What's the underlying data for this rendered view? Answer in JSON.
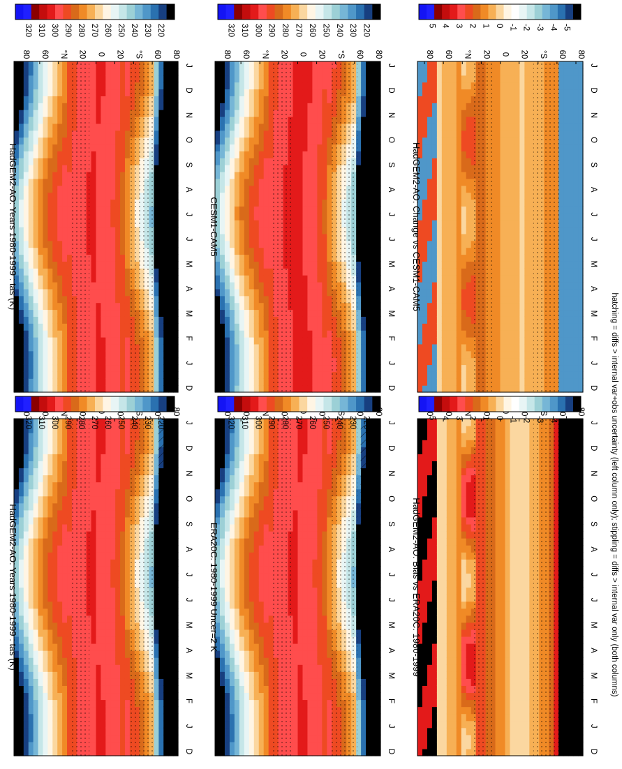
{
  "figure": {
    "footnote": "hatching = diffs > internal var+obs uncertainty (left column only); stippling = diffs > internal var only (both columns)"
  },
  "colors": {
    "abs_scale": [
      "#1414f5",
      "#2020ff",
      "#8b0000",
      "#c40d0d",
      "#e31a1a",
      "#ff4d4d",
      "#ee4a22",
      "#d96a1a",
      "#f08a26",
      "#f7b055",
      "#fbd7a0",
      "#fff5e4",
      "#e8f5f5",
      "#c5e6e8",
      "#9cd0d6",
      "#76b6d6",
      "#4f97c9",
      "#2a71b0",
      "#173f80",
      "#000000"
    ],
    "diff_scale": [
      "#1414f5",
      "#2020ff",
      "#8b0000",
      "#c40d0d",
      "#e31a1a",
      "#ff4d4d",
      "#ee4a22",
      "#d96a1a",
      "#f08a26",
      "#f7b055",
      "#fbd7a0",
      "#fff5e4",
      "#ffffff",
      "#e8f5f5",
      "#c5e6e8",
      "#9cd0d6",
      "#76b6d6",
      "#4f97c9",
      "#2a71b0",
      "#173f80",
      "#000000"
    ]
  },
  "chart_data": [
    {
      "id": "p1",
      "type": "heatmap",
      "title": "HadGEM2-AO: Years 1980-1999 : tas (K)",
      "x_tick_labels": [
        "D",
        "J",
        "F",
        "M",
        "A",
        "M",
        "J",
        "J",
        "A",
        "S",
        "O",
        "N",
        "D",
        "J"
      ],
      "y_tick_labels": [
        "80",
        "60",
        "°N",
        "20",
        "0",
        "20",
        "°S",
        "60",
        "80"
      ],
      "colorbar_labels": [
        "320",
        "310",
        "300",
        "290",
        "280",
        "270",
        "260",
        "250",
        "240",
        "230",
        "220"
      ],
      "hatching": true,
      "stippling": true
    },
    {
      "id": "p2",
      "type": "heatmap",
      "title": "HadGEM2-AO: Years 1980-1999 : tas (K)",
      "x_tick_labels": [
        "D",
        "J",
        "F",
        "M",
        "A",
        "M",
        "J",
        "J",
        "A",
        "S",
        "O",
        "N",
        "D",
        "J"
      ],
      "y_tick_labels": [
        "80",
        "60",
        "°N",
        "20",
        "0",
        "20",
        "°S",
        "60",
        "80"
      ],
      "colorbar_labels": [
        "320",
        "310",
        "300",
        "290",
        "280",
        "270",
        "260",
        "250",
        "240",
        "230",
        "220"
      ],
      "hatching": false,
      "stippling": true
    },
    {
      "id": "p3",
      "type": "heatmap",
      "title": "ERA20C: 1980-1999 Uncer=2 K",
      "x_tick_labels": [
        "D",
        "J",
        "F",
        "M",
        "A",
        "M",
        "J",
        "J",
        "A",
        "S",
        "O",
        "N",
        "D",
        "J"
      ],
      "y_tick_labels": [
        "80",
        "60",
        "°N",
        "20",
        "0",
        "20",
        "°S",
        "60",
        "80"
      ],
      "colorbar_labels": [
        "320",
        "310",
        "300",
        "290",
        "280",
        "270",
        "260",
        "250",
        "240",
        "230",
        "220"
      ],
      "hatching": true,
      "stippling": true
    },
    {
      "id": "p4",
      "type": "heatmap",
      "title": "CESM1-CAM5",
      "x_tick_labels": [
        "D",
        "J",
        "F",
        "M",
        "A",
        "M",
        "J",
        "J",
        "A",
        "S",
        "O",
        "N",
        "D",
        "J"
      ],
      "y_tick_labels": [
        "80",
        "60",
        "°N",
        "20",
        "0",
        "20",
        "°S",
        "60",
        "80"
      ],
      "colorbar_labels": [
        "320",
        "310",
        "300",
        "290",
        "280",
        "270",
        "260",
        "250",
        "240",
        "230",
        "220"
      ],
      "hatching": false,
      "stippling": true
    },
    {
      "id": "p5",
      "type": "heatmap",
      "title": "HadGEM2-AO: Bias vs ERA20C: 1980-1999",
      "x_tick_labels": [
        "D",
        "J",
        "F",
        "M",
        "A",
        "M",
        "J",
        "J",
        "A",
        "S",
        "O",
        "N",
        "D",
        "J"
      ],
      "y_tick_labels": [
        "80",
        "60",
        "°N",
        "20",
        "0",
        "20",
        "°S",
        "60",
        "80"
      ],
      "colorbar_labels": [
        "5",
        "4",
        "3",
        "2",
        "1",
        "0",
        "-1",
        "-2",
        "-3",
        "-4",
        "-5"
      ],
      "hatching": true,
      "stippling": true
    },
    {
      "id": "p6",
      "type": "heatmap",
      "title": "HadGEM2-AO: Change vs CESM1-CAM5",
      "x_tick_labels": [
        "D",
        "J",
        "F",
        "M",
        "A",
        "M",
        "J",
        "J",
        "A",
        "S",
        "O",
        "N",
        "D",
        "J"
      ],
      "y_tick_labels": [
        "80",
        "60",
        "°N",
        "20",
        "0",
        "20",
        "°S",
        "60",
        "80"
      ],
      "colorbar_labels": [
        "5",
        "4",
        "3",
        "2",
        "1",
        "0",
        "-1",
        "-2",
        "-3",
        "-4",
        "-5"
      ],
      "hatching": false,
      "stippling": true
    }
  ]
}
